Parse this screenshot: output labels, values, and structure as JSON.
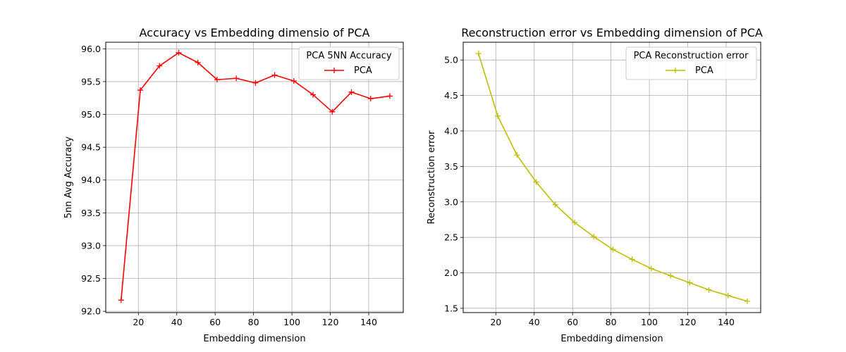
{
  "chart_data": [
    {
      "type": "line",
      "title": "Accuracy vs Embedding dimensio of PCA",
      "xlabel": "Embedding dimension",
      "ylabel": "5nn Avg Accuracy",
      "xlim": [
        3,
        158
      ],
      "ylim": [
        91.98,
        96.1
      ],
      "xticks": [
        20,
        40,
        60,
        80,
        100,
        120,
        140
      ],
      "yticks": [
        92.0,
        92.5,
        93.0,
        93.5,
        94.0,
        94.5,
        95.0,
        95.5,
        96.0
      ],
      "ytick_labels": [
        "92.0",
        "92.5",
        "93.0",
        "93.5",
        "94.0",
        "94.5",
        "95.0",
        "95.5",
        "96.0"
      ],
      "grid": true,
      "legend": {
        "title": "PCA 5NN Accuracy",
        "position": "top-right"
      },
      "series": [
        {
          "name": "PCA",
          "color": "#ff0000",
          "marker": "plus",
          "x": [
            11,
            21,
            31,
            41,
            51,
            61,
            71,
            81,
            91,
            101,
            111,
            121,
            131,
            141,
            151
          ],
          "values": [
            92.17,
            95.37,
            95.74,
            95.94,
            95.79,
            95.53,
            95.55,
            95.48,
            95.6,
            95.51,
            95.3,
            95.04,
            95.34,
            95.24,
            95.28
          ]
        }
      ]
    },
    {
      "type": "line",
      "title": "Reconstruction error vs Embedding dimension of PCA",
      "xlabel": "Embedding dimension",
      "ylabel": "Reconstruction error",
      "xlim": [
        3,
        158
      ],
      "ylim": [
        1.44,
        5.25
      ],
      "xticks": [
        20,
        40,
        60,
        80,
        100,
        120,
        140
      ],
      "yticks": [
        1.5,
        2.0,
        2.5,
        3.0,
        3.5,
        4.0,
        4.5,
        5.0
      ],
      "ytick_labels": [
        "1.5",
        "2.0",
        "2.5",
        "3.0",
        "3.5",
        "4.0",
        "4.5",
        "5.0"
      ],
      "grid": true,
      "legend": {
        "title": "PCA Reconstruction error",
        "position": "top-right"
      },
      "series": [
        {
          "name": "PCA",
          "color": "#bfbf00",
          "marker": "plus",
          "x": [
            11,
            21,
            31,
            41,
            51,
            61,
            71,
            81,
            91,
            101,
            111,
            121,
            131,
            141,
            151
          ],
          "values": [
            5.09,
            4.21,
            3.66,
            3.28,
            2.96,
            2.71,
            2.51,
            2.33,
            2.19,
            2.06,
            1.96,
            1.86,
            1.76,
            1.68,
            1.6
          ]
        }
      ]
    }
  ]
}
